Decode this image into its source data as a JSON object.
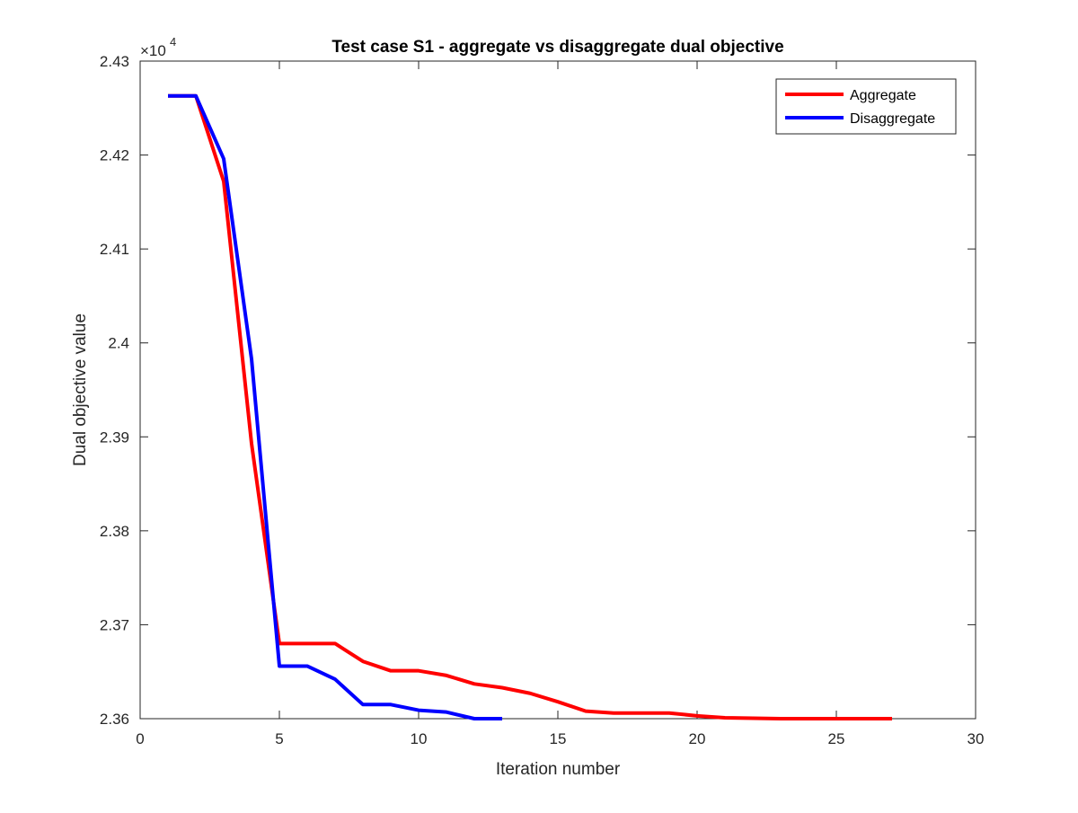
{
  "chart_data": {
    "type": "line",
    "title": "Test case S1 - aggregate vs disaggregate dual objective",
    "xlabel": "Iteration number",
    "ylabel": "Dual objective value",
    "xlim": [
      0,
      30
    ],
    "ylim": [
      23600,
      24300
    ],
    "y_exponent_label": "×10",
    "y_exponent_power": "4",
    "xticks": [
      0,
      5,
      10,
      15,
      20,
      25,
      30
    ],
    "xtick_labels": [
      "0",
      "5",
      "10",
      "15",
      "20",
      "25",
      "30"
    ],
    "yticks": [
      23600,
      23700,
      23800,
      23900,
      24000,
      24100,
      24200,
      24300
    ],
    "ytick_labels": [
      "2.36",
      "2.37",
      "2.38",
      "2.39",
      "2.4",
      "2.41",
      "2.42",
      "2.43"
    ],
    "grid": false,
    "legend_position": "top-right",
    "series": [
      {
        "name": "Aggregate",
        "color": "#ff0000",
        "x": [
          1,
          2,
          3,
          4,
          5,
          6,
          7,
          8,
          9,
          10,
          11,
          12,
          13,
          14,
          15,
          16,
          17,
          18,
          19,
          20,
          21,
          22,
          23,
          24,
          25,
          26,
          27
        ],
        "y": [
          24263,
          24263,
          24172,
          23893,
          23680,
          23680,
          23680,
          23661,
          23651,
          23651,
          23646,
          23637,
          23633,
          23627,
          23618,
          23608,
          23606,
          23606,
          23606,
          23603,
          23601,
          23600.5,
          23600,
          23600,
          23600,
          23600,
          23600
        ]
      },
      {
        "name": "Disaggregate",
        "color": "#0000ff",
        "x": [
          1,
          2,
          3,
          4,
          5,
          6,
          7,
          8,
          9,
          10,
          11,
          12,
          13
        ],
        "y": [
          24263,
          24263,
          24196,
          23983,
          23656,
          23656,
          23642,
          23615,
          23615,
          23609,
          23607,
          23600,
          23600
        ]
      }
    ]
  }
}
